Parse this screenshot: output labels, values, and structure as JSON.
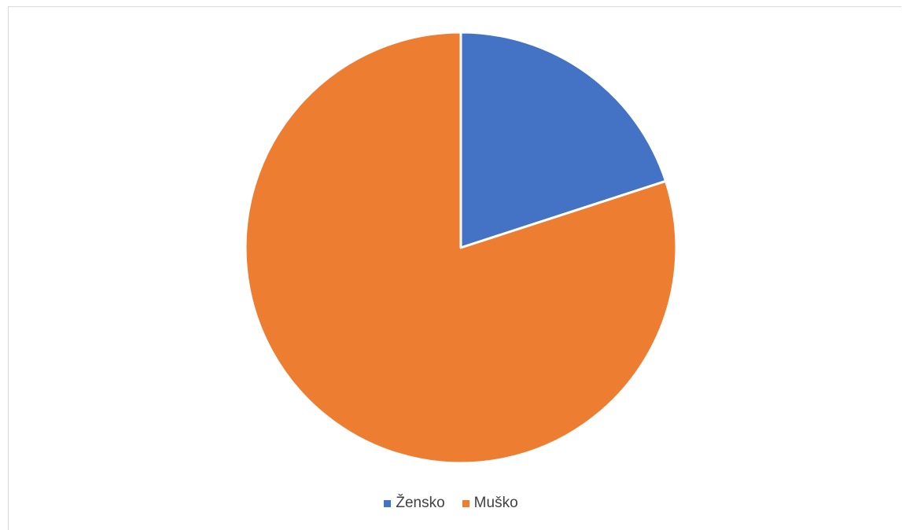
{
  "chart_data": {
    "type": "pie",
    "title": "",
    "categories": [
      "Žensko",
      "Muško"
    ],
    "values": [
      20,
      80
    ],
    "colors": [
      "#4472c4",
      "#ed7d31"
    ],
    "legend_position": "bottom",
    "start_angle_deg": 0,
    "direction": "clockwise"
  }
}
